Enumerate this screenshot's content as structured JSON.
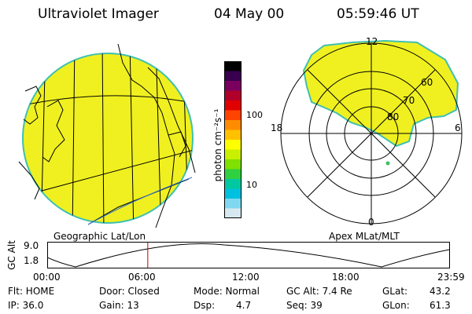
{
  "header": {
    "instrument": "Ultraviolet Imager",
    "date": "04 May 00",
    "time": "05:59:46 UT"
  },
  "colorbar": {
    "ticks": [
      "100",
      "10"
    ],
    "unit_label": "photon cm⁻²s⁻¹",
    "colors": [
      "#000000",
      "#3a0050",
      "#7a0060",
      "#b0002a",
      "#e00000",
      "#ff4400",
      "#ff8c00",
      "#ffc000",
      "#ffff00",
      "#c8f000",
      "#80e000",
      "#30d040",
      "#00c8a0",
      "#00c0e0",
      "#80d8f0",
      "#d8e8f0"
    ]
  },
  "left_panel": {
    "caption": "Geographic Lat/Lon",
    "disk_color": "#f0f020"
  },
  "right_panel": {
    "caption": "Apex MLat/MLT",
    "mlt_labels": {
      "top": "12",
      "bottom": "0",
      "left": "18",
      "right": "6"
    },
    "mlat_labels": [
      "60",
      "70",
      "80"
    ]
  },
  "altitude_plot": {
    "ylabel": "GC Alt",
    "y_max": "9.0",
    "y_min": "1.8",
    "hours": [
      "00:00",
      "06:00",
      "12:00",
      "18:00",
      "23:59"
    ],
    "marker_hour": 6.0
  },
  "status": {
    "flt": "Flt: HOME",
    "ip": "IP: 36.0",
    "door": "Door: Closed",
    "gain": "Gain: 13",
    "mode": "Mode: Normal",
    "dsp_label": "Dsp:",
    "dsp_value": "4.7",
    "gc_alt": "GC Alt: 7.4 Re",
    "seq": "Seq: 39",
    "glat_label": "GLat:",
    "glat_value": "43.2",
    "glon_label": "GLon:",
    "glon_value": "61.3"
  }
}
